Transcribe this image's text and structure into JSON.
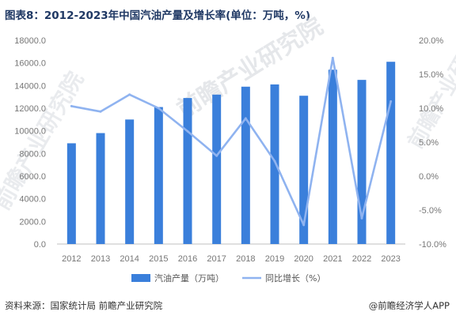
{
  "title": "图表8：2012-2023年中国汽油产量及增长率(单位：万吨，%)",
  "footer": {
    "source": "资料来源：国家统计局 前瞻产业研究院",
    "brand": "@前瞻经济学人APP"
  },
  "watermark": {
    "text": "前瞻产业研究院"
  },
  "colors": {
    "bar": "#3a7fdb",
    "line": "#8fb3f0",
    "title": "#1f3864"
  },
  "chart_data": {
    "type": "bar+line",
    "categories": [
      "2012",
      "2013",
      "2014",
      "2015",
      "2016",
      "2017",
      "2018",
      "2019",
      "2020",
      "2021",
      "2022",
      "2023"
    ],
    "series": [
      {
        "name": "汽油产量（万吨）",
        "type": "bar",
        "axis": "left",
        "values": [
          8900,
          9800,
          11000,
          12100,
          12900,
          13200,
          13900,
          14100,
          13100,
          15400,
          14500,
          16100
        ]
      },
      {
        "name": "同比增长（%）",
        "type": "line",
        "axis": "right",
        "values": [
          10.3,
          9.5,
          12.0,
          10.0,
          6.6,
          3.0,
          8.5,
          2.2,
          -7.2,
          17.4,
          -6.2,
          11.0
        ]
      }
    ],
    "y_left": {
      "min": 0,
      "max": 18000,
      "ticks": [
        "0.0",
        "2000.0",
        "4000.0",
        "6000.0",
        "8000.0",
        "10000.0",
        "12000.0",
        "14000.0",
        "16000.0",
        "18000.0"
      ]
    },
    "y_right": {
      "min": -10,
      "max": 20,
      "ticks": [
        "-10.0%",
        "-5.0%",
        "0.0%",
        "5.0%",
        "10.0%",
        "15.0%",
        "20.0%"
      ]
    },
    "legend": {
      "position": "bottom"
    },
    "grid": false
  }
}
